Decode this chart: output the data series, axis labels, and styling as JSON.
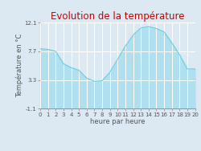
{
  "title": "Evolution de la température",
  "xlabel": "heure par heure",
  "ylabel": "Température en °C",
  "ylim": [
    -1.1,
    12.1
  ],
  "yticks": [
    -1.1,
    3.3,
    7.7,
    12.1
  ],
  "xticks": [
    0,
    1,
    2,
    3,
    4,
    5,
    6,
    7,
    8,
    9,
    10,
    11,
    12,
    13,
    14,
    15,
    16,
    17,
    18,
    19,
    20
  ],
  "xtick_labels": [
    "0",
    "1",
    "2",
    "3",
    "4",
    "5",
    "6",
    "7",
    "8",
    "9",
    "10",
    "11",
    "12",
    "13",
    "14",
    "15",
    "16",
    "17",
    "18",
    "19",
    "20"
  ],
  "hours": [
    0,
    1,
    2,
    3,
    4,
    5,
    6,
    7,
    8,
    9,
    10,
    11,
    12,
    13,
    14,
    15,
    16,
    17,
    18,
    19,
    20
  ],
  "temps": [
    8.1,
    8.0,
    7.7,
    5.8,
    5.2,
    4.8,
    3.6,
    3.1,
    3.2,
    4.5,
    6.5,
    8.5,
    10.2,
    11.3,
    11.5,
    11.2,
    10.7,
    9.0,
    7.2,
    5.0,
    5.0
  ],
  "line_color": "#6ecfdf",
  "fill_color": "#b0dff0",
  "background_color": "#dce9f2",
  "plot_bg_color": "#dce9f2",
  "title_color": "#cc0000",
  "axis_color": "#999999",
  "tick_color": "#555555",
  "grid_color": "#ffffff",
  "title_fontsize": 8.5,
  "label_fontsize": 6.0,
  "tick_fontsize": 5.0
}
